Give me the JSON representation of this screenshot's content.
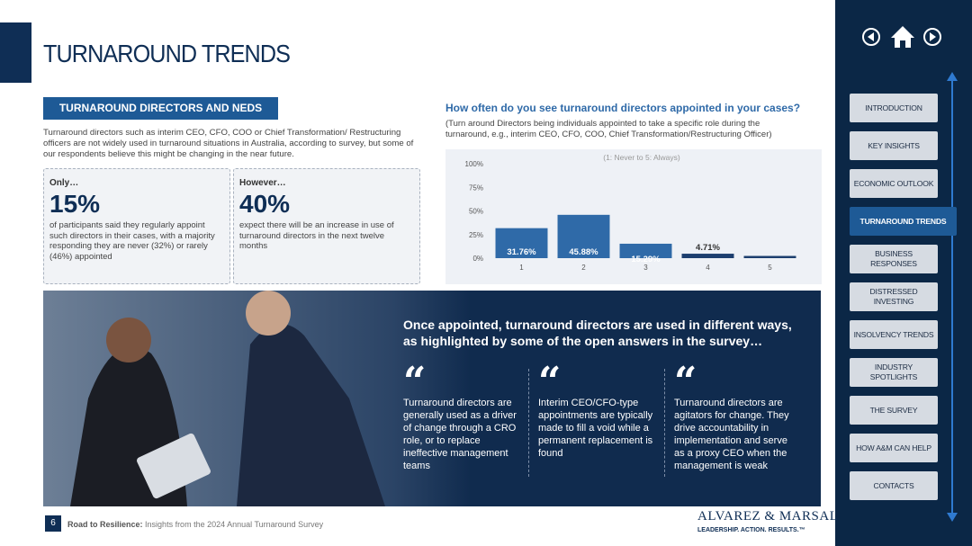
{
  "header": {
    "title": "TURNAROUND TRENDS"
  },
  "section": {
    "heading": "TURNAROUND DIRECTORS AND NEDS",
    "intro": "Turnaround directors such as interim CEO, CFO, COO or Chief Transformation/ Restructuring officers are not widely used in turnaround situations in Australia, according to survey, but some of our respondents believe this might be changing in the near future."
  },
  "cards": [
    {
      "label": "Only…",
      "stat": "15%",
      "text": "of participants said they regularly appoint such directors in their cases, with a majority responding they are never (32%) or rarely (46%) appointed"
    },
    {
      "label": "However…",
      "stat": "40%",
      "text": "expect there will be an increase in use of turnaround directors in the next twelve months"
    }
  ],
  "chart_data": {
    "type": "bar",
    "title": "How often do you see turnaround directors appointed in your cases?",
    "subtitle": "(Turn around Directors being individuals appointed to take a specific role during the turnaround, e.g., interim CEO, CFO, COO, Chief Transformation/Restructuring Officer)",
    "note": "(1: Never to 5: Always)",
    "categories": [
      "1",
      "2",
      "3",
      "4",
      "5"
    ],
    "values": [
      31.76,
      45.88,
      15.29,
      4.71,
      2.36
    ],
    "value_labels": [
      "31.76%",
      "45.88%",
      "15.29%",
      "4.71%",
      null
    ],
    "color": "#2f6aa8",
    "color_small": "#1d3f6e",
    "ylim": [
      0,
      100
    ],
    "yticks": [
      {
        "value": 0,
        "label": "0%"
      },
      {
        "value": 25,
        "label": "25%"
      },
      {
        "value": 50,
        "label": "50%"
      },
      {
        "value": 75,
        "label": "75%"
      },
      {
        "value": 100,
        "label": "100%"
      }
    ],
    "grid": false
  },
  "quotes": {
    "heading": "Once appointed, turnaround directors are used in different ways, as highlighted by some of the open answers in the survey…",
    "items": [
      "Turnaround directors are generally used as a driver of change through a CRO role, or to replace ineffective management teams",
      "Interim CEO/CFO-type appointments are typically made to fill a void while a permanent replacement is found",
      "Turnaround directors are agitators for change. They drive accountability in implementation and serve as a proxy CEO when the management is weak"
    ]
  },
  "nav": {
    "items": [
      "INTRODUCTION",
      "KEY INSIGHTS",
      "ECONOMIC OUTLOOK",
      "TURNAROUND TRENDS",
      "BUSINESS RESPONSES",
      "DISTRESSED INVESTING",
      "INSOLVENCY TRENDS",
      "INDUSTRY SPOTLIGHTS",
      "THE SURVEY",
      "HOW A&M CAN HELP",
      "CONTACTS"
    ],
    "active": 3
  },
  "footer": {
    "page": "6",
    "series": "Road to Resilience:",
    "subtitle": "Insights from the 2024 Annual Turnaround Survey",
    "brand": "ALVAREZ & MARSAL",
    "tagline": "LEADERSHIP. ACTION. RESULTS.™"
  }
}
